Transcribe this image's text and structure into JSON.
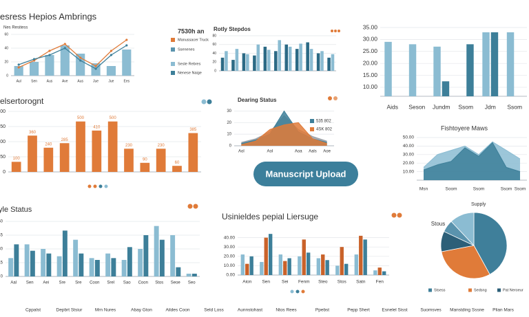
{
  "button": "Manuscript Upload",
  "legend_box": {
    "title": "7530h an",
    "items": [
      {
        "label": "Manussacer Truck",
        "color": "#e07b39"
      },
      {
        "label": "Ssenenes",
        "color": "#5a93ad"
      },
      {
        "label": "Seste Rebres",
        "color": "#8bbcd2"
      },
      {
        "label": "Nenese Naige",
        "color": "#3d7f99"
      }
    ]
  },
  "footer": [
    "Cppalst",
    "Depbrt Stsiur",
    "Mrn Nures",
    "Abay Gton",
    "Aildes Coon",
    "Seld Loss",
    "Aunnstohast",
    "Ntos Rees",
    "Ppebst",
    "Pepp Shert",
    "Esnelel Sisst",
    "Suomsves",
    "Manstding Sssne",
    "Plian Mars"
  ],
  "chart_data": [
    {
      "type": "bar",
      "title": "esress Hepios Ambrings",
      "subtitle": "Nes Resitess",
      "categories": [
        "Aul",
        "Sen",
        "Aus",
        "Ave",
        "Aus",
        "Jue",
        "Jue",
        "Ees"
      ],
      "series": [
        {
          "color": "#8bbcd2",
          "values": [
            14,
            20,
            30,
            44,
            32,
            18,
            14,
            38
          ]
        },
        {
          "type": "line",
          "color": "#e07b39",
          "values": [
            12,
            22,
            36,
            46,
            26,
            14,
            36,
            52
          ]
        },
        {
          "type": "line",
          "color": "#3d7f99",
          "values": [
            16,
            24,
            30,
            40,
            22,
            10,
            30,
            44
          ]
        }
      ],
      "ylim": [
        0,
        60
      ],
      "yticks": [
        0,
        20,
        40,
        60
      ],
      "grid": true
    },
    {
      "type": "bar",
      "title": "Rotly Stepdos",
      "series": [
        {
          "color": "#2c6a85",
          "values": [
            30,
            25,
            40,
            35,
            55,
            45,
            60,
            50,
            65,
            40,
            30
          ]
        },
        {
          "color": "#8bbcd2",
          "values": [
            45,
            50,
            38,
            60,
            48,
            70,
            55,
            62,
            50,
            45,
            38
          ]
        }
      ],
      "ylim": [
        0,
        80
      ],
      "yticks": [
        0,
        20,
        40,
        60,
        80
      ],
      "grid": true
    },
    {
      "type": "bar",
      "categories": [
        "Aids",
        "Seson",
        "Jundm",
        "Ssom",
        "Jdm",
        "Ssom"
      ],
      "series": [
        {
          "color": "#8bbcd2",
          "values": [
            29,
            28,
            27,
            null,
            33,
            33
          ]
        },
        {
          "color": "#3d7f99",
          "values": [
            null,
            null,
            12.5,
            28,
            33,
            null
          ]
        }
      ],
      "ylim": [
        6.25,
        35
      ],
      "yticks": [
        {
          "value": 10,
          "label": "10.00"
        },
        {
          "value": 15,
          "label": "15.00"
        },
        {
          "value": 20,
          "label": "20.00"
        },
        {
          "value": 25,
          "label": "25.00"
        },
        {
          "value": 30,
          "label": "30.00"
        },
        {
          "value": 35,
          "label": "35.00"
        }
      ],
      "grid": true
    },
    {
      "type": "bar",
      "title": "elsertorognt",
      "color": "#e07b39",
      "values": [
        100,
        360,
        240,
        285,
        500,
        410,
        500,
        230,
        90,
        230,
        60,
        385
      ],
      "ylim": [
        0,
        600
      ],
      "yticks": [
        0,
        150,
        300,
        450,
        600
      ],
      "grid": true,
      "data_labels": true
    },
    {
      "type": "area",
      "title": "Dearing Status",
      "categories": [
        "Aol",
        null,
        "Aol",
        null,
        "Aoa",
        "Aals",
        "Aoe"
      ],
      "series": [
        {
          "color": "#9a9fa6",
          "values": [
            3,
            6,
            12,
            26,
            14,
            8,
            4
          ]
        },
        {
          "name": "535 802",
          "color": "#3d7f99",
          "values": [
            2,
            5,
            10,
            30,
            12,
            6,
            3
          ]
        },
        {
          "name": "4SK 802",
          "color": "#e07b39",
          "values": [
            1,
            4,
            14,
            18,
            20,
            6,
            2
          ]
        }
      ],
      "ylim": [
        0,
        32
      ],
      "yticks": [
        0,
        10,
        20,
        30
      ],
      "grid": true,
      "legend": "right"
    },
    {
      "type": "area",
      "title": "Fishtoyere Maws",
      "categories": [
        "Msn",
        null,
        "Soom",
        null,
        "Ssom",
        null,
        "Ssom",
        "Ssom"
      ],
      "series": [
        {
          "color": "#8bbcd2",
          "values": [
            15,
            30,
            35,
            40,
            30,
            45,
            35,
            25
          ]
        },
        {
          "color": "#3d7f99",
          "values": [
            12,
            18,
            22,
            38,
            28,
            44,
            15,
            10
          ]
        }
      ],
      "ylim": [
        0,
        50
      ],
      "yticks": [
        {
          "value": 10,
          "label": "10.00"
        },
        {
          "value": 20,
          "label": "20.00"
        },
        {
          "value": 30,
          "label": "30.00"
        },
        {
          "value": 40,
          "label": "40.00"
        },
        {
          "value": 50,
          "label": "50.00"
        }
      ],
      "grid": true
    },
    {
      "type": "bar",
      "title": "yle Status",
      "categories": [
        "Aal",
        "Sen",
        "Aei",
        "Sre",
        "Sre",
        "Coon",
        "Srel",
        "Sao",
        "Coon",
        "Stos",
        "Seoe",
        "Seo"
      ],
      "series": [
        {
          "color": "#8bbcd2",
          "values": [
            20,
            35,
            30,
            22,
            40,
            20,
            25,
            18,
            30,
            55,
            45,
            3
          ]
        },
        {
          "color": "#3d7f99",
          "values": [
            35,
            28,
            25,
            50,
            25,
            18,
            20,
            32,
            45,
            40,
            10,
            3
          ]
        }
      ],
      "ylim": [
        0,
        60
      ],
      "yticks": [
        0,
        15,
        30,
        45,
        60
      ],
      "grid": true
    },
    {
      "type": "bar",
      "title": "Usinieldes pepial Liersuge",
      "categories": [
        "Aion",
        "Sen",
        "Sei",
        "Fenm",
        "Steo",
        "Stos",
        "Satn",
        "Fen"
      ],
      "series": [
        {
          "color": "#8bbcd2",
          "values": [
            22,
            14,
            22,
            20,
            18,
            10,
            22,
            5
          ]
        },
        {
          "color": "#c9622a",
          "values": [
            12,
            40,
            15,
            38,
            22,
            30,
            42,
            8
          ]
        },
        {
          "color": "#3d7f99",
          "values": [
            20,
            44,
            18,
            24,
            16,
            12,
            38,
            4
          ]
        }
      ],
      "ylim": [
        0,
        50
      ],
      "yticks": [
        {
          "value": 0,
          "label": "0.00"
        },
        {
          "value": 10,
          "label": "10.00"
        },
        {
          "value": 20,
          "label": "20.00"
        },
        {
          "value": 30,
          "label": "30.00"
        },
        {
          "value": 40,
          "label": "40.00"
        }
      ],
      "grid": true
    },
    {
      "type": "pie",
      "title": "Supply",
      "annotation": "Stous",
      "categories": [
        "Stsess",
        "Sedsng",
        "Pat Neroeur",
        null,
        null
      ],
      "values": [
        42,
        30,
        10,
        6,
        12
      ],
      "colors": [
        "#3f7f9a",
        "#e07b39",
        "#2c5f78",
        "#5a93ad",
        "#8bbcd2"
      ]
    }
  ]
}
